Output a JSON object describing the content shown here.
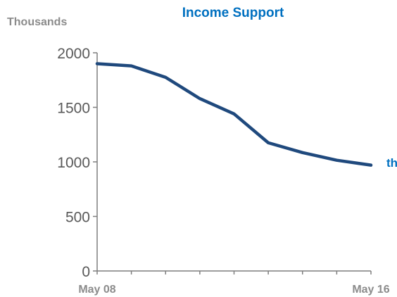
{
  "chart_data": {
    "type": "line",
    "title": "Income Support",
    "ylabel": "Thousands",
    "xlabel": "",
    "ylim": [
      0,
      2000
    ],
    "yticks": [
      0,
      500,
      1000,
      1500,
      2000
    ],
    "x_tick_labels": [
      "May 08",
      "May 16"
    ],
    "x": [
      0,
      1,
      2,
      3,
      4,
      5,
      6,
      7,
      8
    ],
    "series": [
      {
        "values": [
          1900,
          1880,
          1775,
          1580,
          1440,
          1175,
          1085,
          1015,
          970
        ]
      }
    ],
    "end_label": "th",
    "grid": false,
    "legend": "none"
  },
  "colors": {
    "title": "#0070c0",
    "line": "#1f497d",
    "axis": "#7f7f7f",
    "unit_label": "#8c8c8c",
    "ytick": "#595959",
    "xtick": "#8c8c8c",
    "end_label": "#0070c0"
  }
}
